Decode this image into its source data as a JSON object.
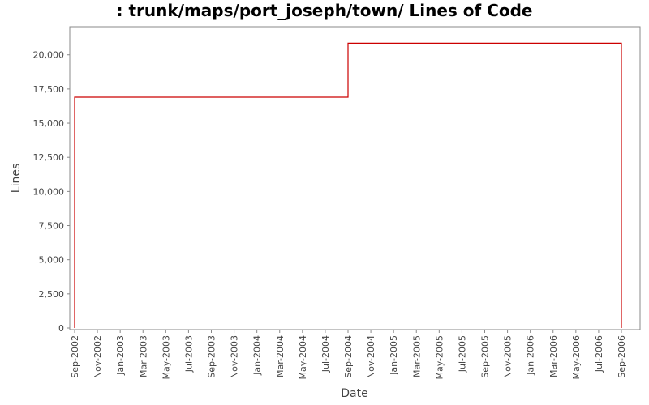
{
  "chart_data": {
    "type": "line",
    "title": ": trunk/maps/port_joseph/town/ Lines of Code",
    "xlabel": "Date",
    "ylabel": "Lines",
    "ylim": [
      0,
      22000
    ],
    "y_ticks": [
      {
        "value": 0,
        "label": "0"
      },
      {
        "value": 2500,
        "label": "2,500"
      },
      {
        "value": 5000,
        "label": "5,000"
      },
      {
        "value": 7500,
        "label": "7,500"
      },
      {
        "value": 10000,
        "label": "10,000"
      },
      {
        "value": 12500,
        "label": "12,500"
      },
      {
        "value": 15000,
        "label": "15,000"
      },
      {
        "value": 17500,
        "label": "17,500"
      },
      {
        "value": 20000,
        "label": "20,000"
      }
    ],
    "x_ticks": [
      "Sep-2002",
      "Nov-2002",
      "Jan-2003",
      "Mar-2003",
      "May-2003",
      "Jul-2003",
      "Sep-2003",
      "Nov-2003",
      "Jan-2004",
      "Mar-2004",
      "May-2004",
      "Jul-2004",
      "Sep-2004",
      "Nov-2004",
      "Jan-2005",
      "Mar-2005",
      "May-2005",
      "Jul-2005",
      "Sep-2005",
      "Nov-2005",
      "Jan-2006",
      "Mar-2006",
      "May-2006",
      "Jul-2006",
      "Sep-2006"
    ],
    "series": [
      {
        "color": "#cc0000",
        "step": true,
        "points": [
          {
            "x": "Sep-2002",
            "y": 0
          },
          {
            "x": "Sep-2002",
            "y": 16900
          },
          {
            "x": "Sep-2004",
            "y": 16900
          },
          {
            "x": "Sep-2004",
            "y": 20850
          },
          {
            "x": "Sep-2006",
            "y": 20850
          },
          {
            "x": "Sep-2006",
            "y": 0
          }
        ]
      }
    ],
    "grid": false,
    "colors": {
      "plot_border": "#888888",
      "tick": "#888888",
      "text": "#444444"
    }
  }
}
